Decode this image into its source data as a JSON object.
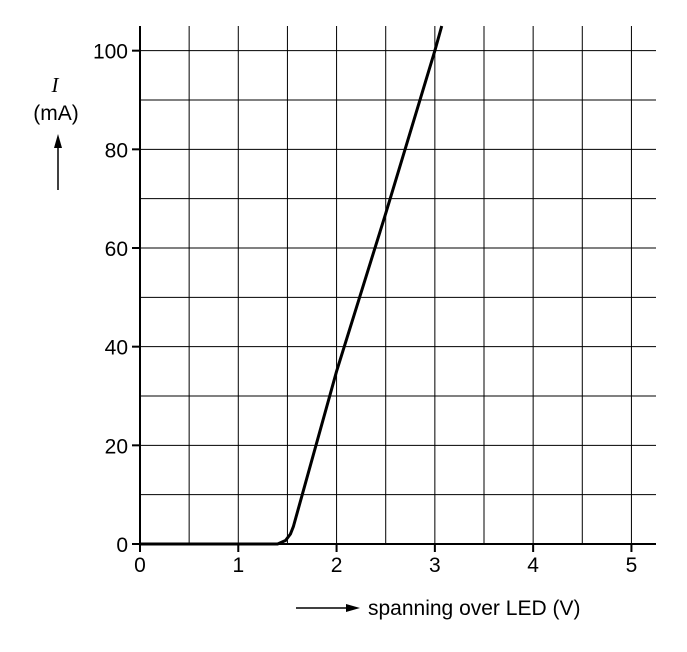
{
  "chart_data": {
    "type": "line",
    "y_label_symbol": "I",
    "y_label_unit": "(mA)",
    "x_label": "spanning over LED (V)",
    "xlim": [
      0,
      5.25
    ],
    "ylim": [
      0,
      105
    ],
    "xticks": [
      0,
      1,
      2,
      3,
      4,
      5
    ],
    "yticks": [
      0,
      20,
      40,
      60,
      80,
      100
    ],
    "xgrid": [
      0.5,
      1,
      1.5,
      2,
      2.5,
      3,
      3.5,
      4,
      4.5,
      5
    ],
    "ygrid": [
      10,
      20,
      30,
      40,
      50,
      60,
      70,
      80,
      90,
      100
    ],
    "grid": true,
    "series": [
      {
        "color": "#000000",
        "x": [
          0,
          1.4,
          1.48,
          1.53,
          1.56,
          2,
          2.5,
          3,
          3.07
        ],
        "values": [
          0,
          0,
          0.7,
          2,
          3.5,
          35,
          67,
          100,
          105
        ]
      }
    ]
  }
}
